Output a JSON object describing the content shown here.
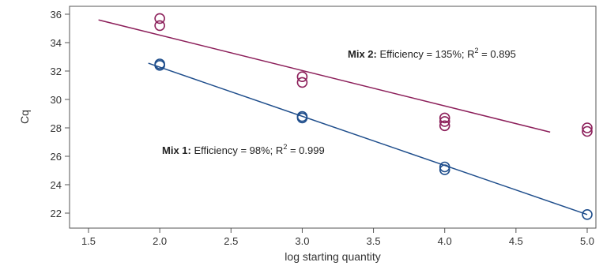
{
  "chart_data": {
    "type": "scatter",
    "xlabel": "log starting quantity",
    "ylabel": "Cq",
    "xlim": [
      1.5,
      5.0
    ],
    "ylim": [
      22,
      36
    ],
    "x_ticks": [
      "1.5",
      "2.0",
      "2.5",
      "3.0",
      "3.5",
      "4.0",
      "4.5",
      "5.0"
    ],
    "y_ticks": [
      "22",
      "24",
      "26",
      "28",
      "30",
      "32",
      "34",
      "36"
    ],
    "grid": false,
    "series": [
      {
        "name": "Mix 1",
        "color": "#1f4e8c",
        "marker": "open-circle",
        "points": [
          [
            2.0,
            32.5
          ],
          [
            2.0,
            32.4
          ],
          [
            3.0,
            28.8
          ],
          [
            3.0,
            28.7
          ],
          [
            4.0,
            25.25
          ],
          [
            4.0,
            25.05
          ],
          [
            5.0,
            21.9
          ]
        ],
        "fit": {
          "x": [
            1.92,
            5.0
          ],
          "y": [
            32.55,
            21.9
          ]
        }
      },
      {
        "name": "Mix 2",
        "color": "#8c1f5a",
        "marker": "open-circle",
        "points": [
          [
            2.0,
            35.7
          ],
          [
            2.0,
            35.2
          ],
          [
            3.0,
            31.6
          ],
          [
            3.0,
            31.2
          ],
          [
            4.0,
            28.7
          ],
          [
            4.0,
            28.45
          ],
          [
            4.0,
            28.15
          ],
          [
            5.0,
            28.0
          ],
          [
            5.0,
            27.75
          ]
        ],
        "fit": {
          "x": [
            1.57,
            4.74
          ],
          "y": [
            35.6,
            27.7
          ]
        }
      }
    ],
    "annotations": [
      {
        "series": "Mix 2",
        "bold": "Mix 2:",
        "pre": " Efficiency = 135%; R",
        "sup": "2",
        "post": " = 0.895"
      },
      {
        "series": "Mix 1",
        "bold": "Mix 1:",
        "pre": " Efficiency = 98%; R",
        "sup": "2",
        "post": " = 0.999"
      }
    ]
  }
}
